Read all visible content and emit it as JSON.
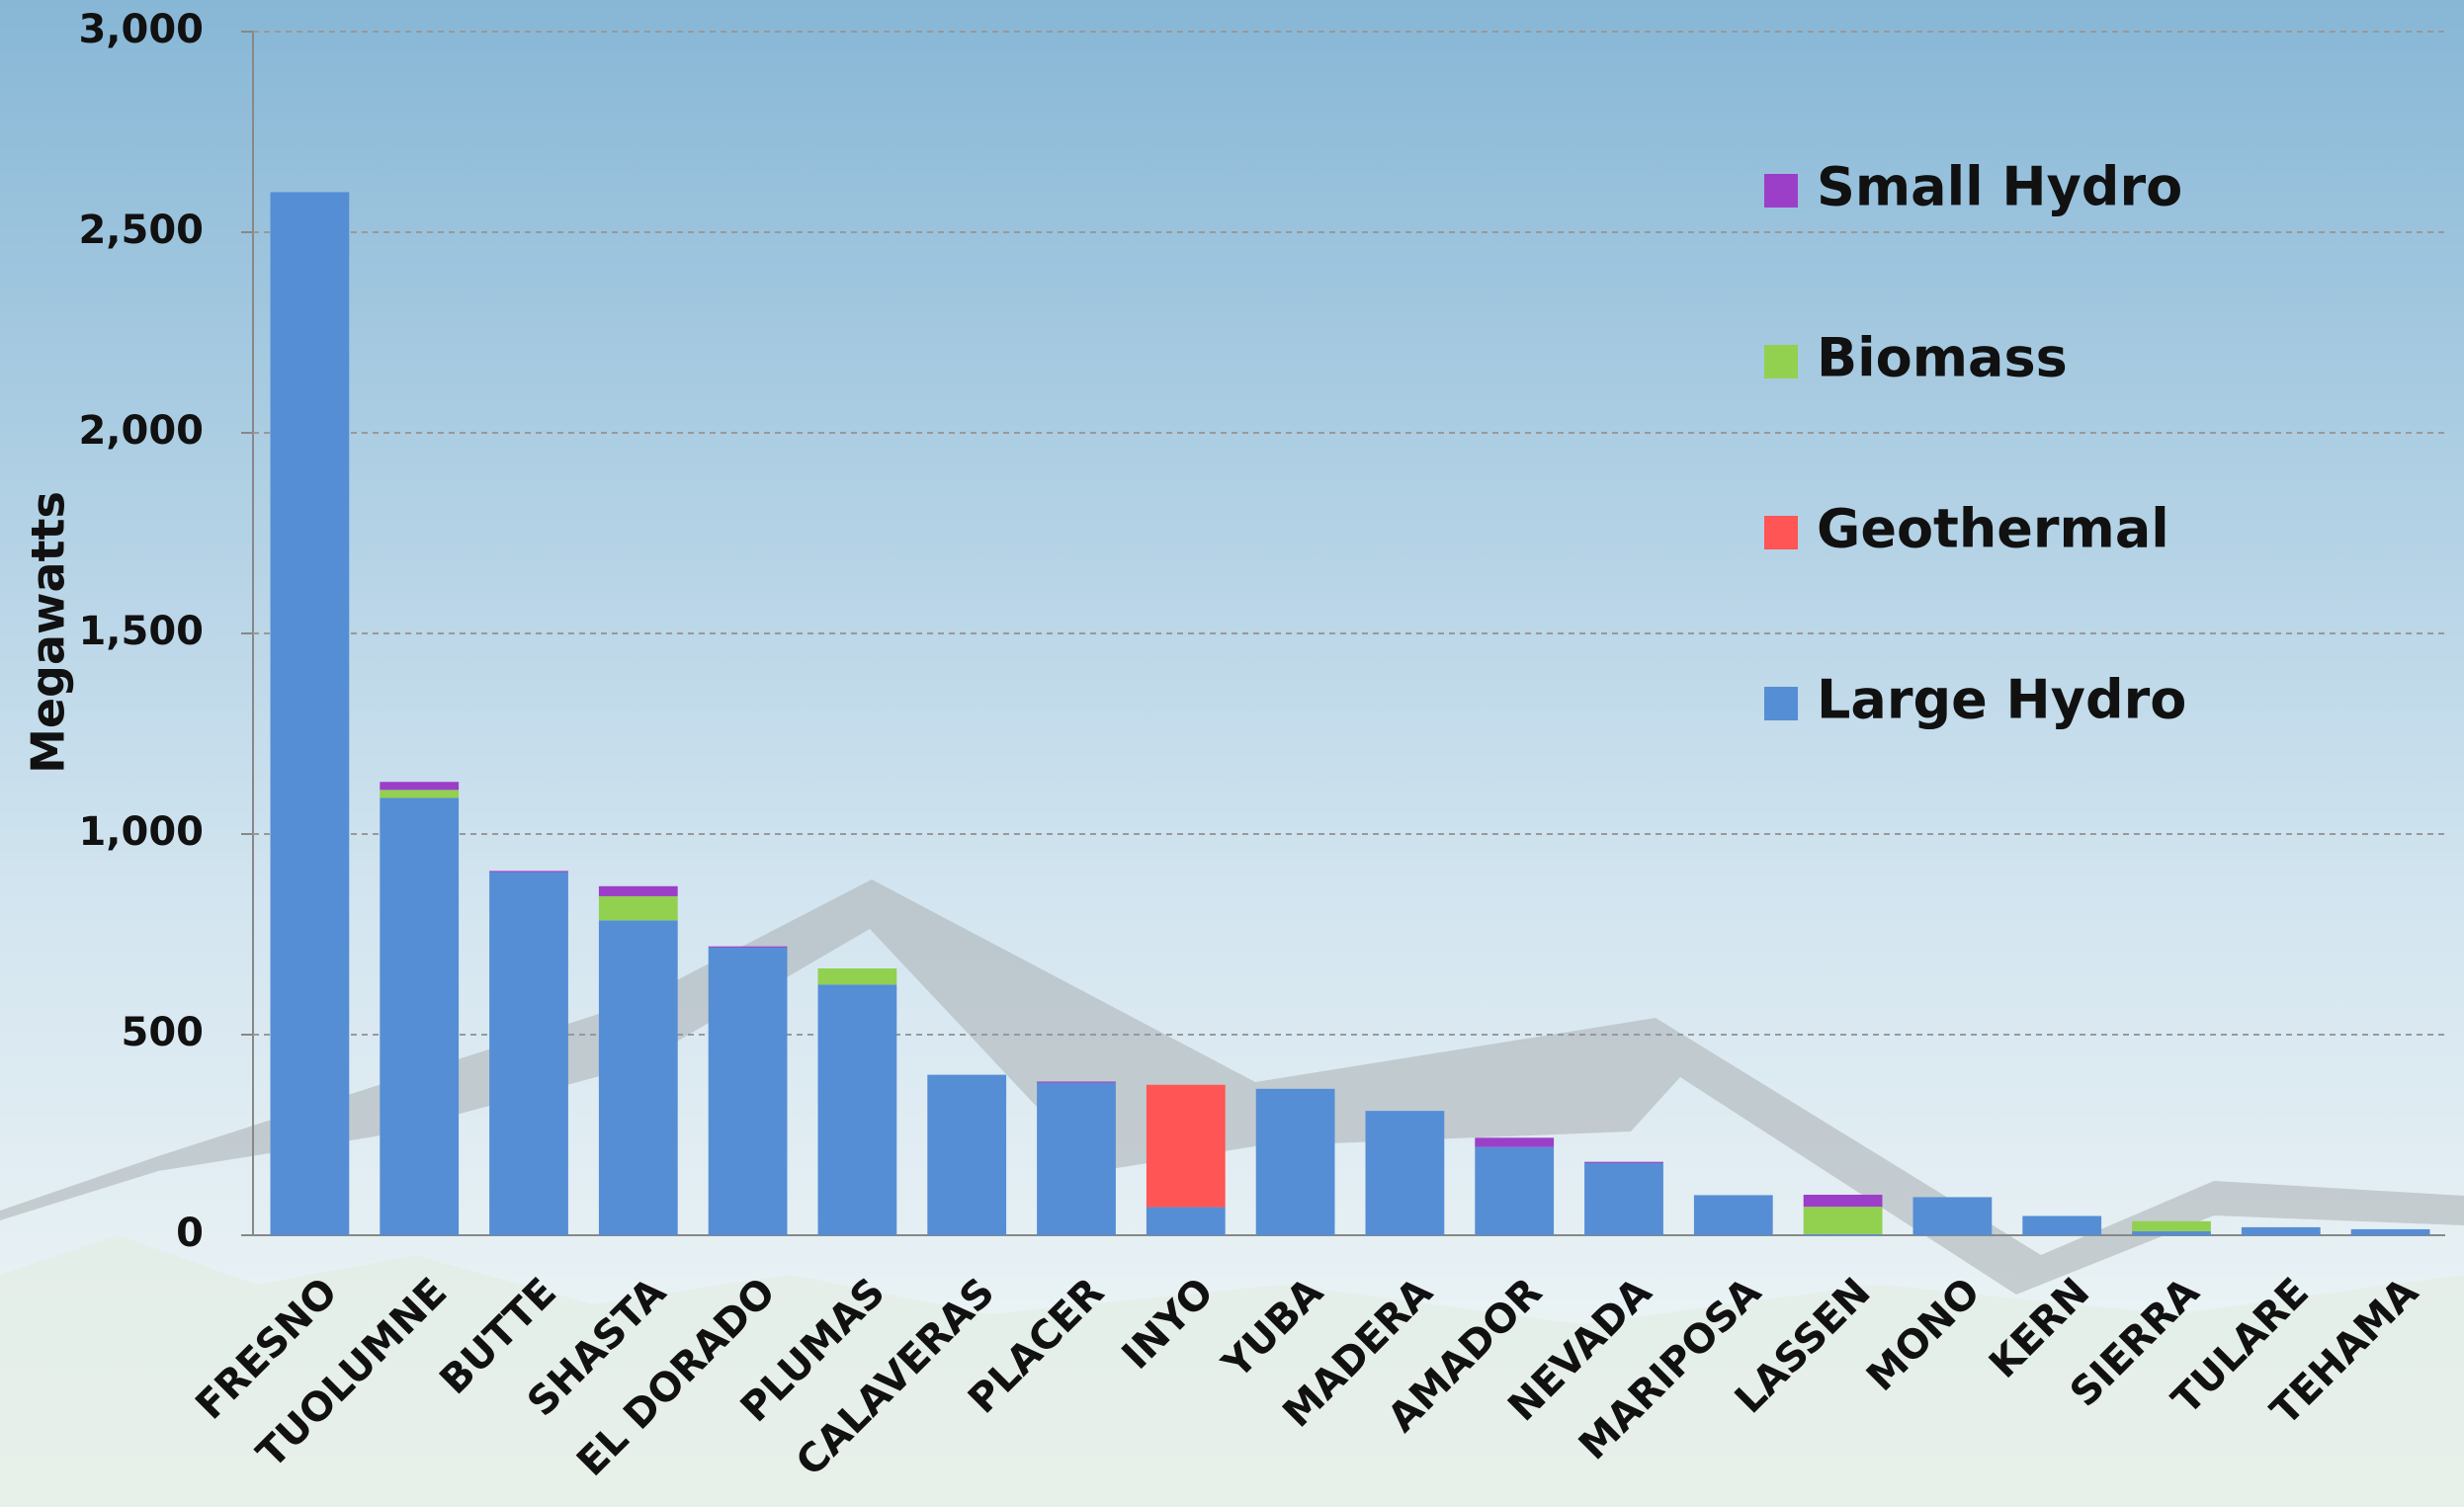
{
  "chart_data": {
    "type": "stacked_bar",
    "y_label": "Megawatts",
    "categories": [
      "FRESNO",
      "TUOLUMNE",
      "BUTTE",
      "SHASTA",
      "EL DORADO",
      "PLUMAS",
      "CALAVERAS",
      "PLACER",
      "INYO",
      "YUBA",
      "MADERA",
      "AMADOR",
      "NEVADA",
      "MARIPOSA",
      "LASSEN",
      "MONO",
      "KERN",
      "SIERRA",
      "TULARE",
      "TEHAMA"
    ],
    "series": [
      {
        "name": "Large Hydro",
        "color": "#558ed5",
        "values": [
          2600,
          1090,
          905,
          785,
          717,
          625,
          400,
          380,
          70,
          365,
          310,
          220,
          180,
          100,
          3,
          95,
          48,
          10,
          20,
          15
        ]
      },
      {
        "name": "Geothermal",
        "color": "#ff5555",
        "values": [
          0,
          0,
          0,
          0,
          0,
          0,
          0,
          0,
          305,
          0,
          0,
          0,
          0,
          0,
          0,
          0,
          0,
          0,
          0,
          0
        ]
      },
      {
        "name": "Biomass",
        "color": "#92d050",
        "values": [
          0,
          20,
          0,
          60,
          0,
          40,
          0,
          0,
          0,
          0,
          0,
          0,
          0,
          0,
          68,
          0,
          0,
          25,
          0,
          0
        ]
      },
      {
        "name": "Small Hydro",
        "color": "#9b3fc8",
        "values": [
          0,
          20,
          3,
          25,
          3,
          0,
          0,
          3,
          0,
          0,
          0,
          23,
          3,
          0,
          30,
          0,
          0,
          0,
          0,
          0
        ]
      }
    ],
    "ylim": [
      0,
      3000
    ],
    "yticks": [
      {
        "value": 0,
        "label": "0"
      },
      {
        "value": 500,
        "label": "500"
      },
      {
        "value": 1000,
        "label": "1,000"
      },
      {
        "value": 1500,
        "label": "1,500"
      },
      {
        "value": 2000,
        "label": "2,000"
      },
      {
        "value": 2500,
        "label": "2,500"
      },
      {
        "value": 3000,
        "label": "3,000"
      }
    ],
    "grid": true,
    "legend": "upper right"
  }
}
